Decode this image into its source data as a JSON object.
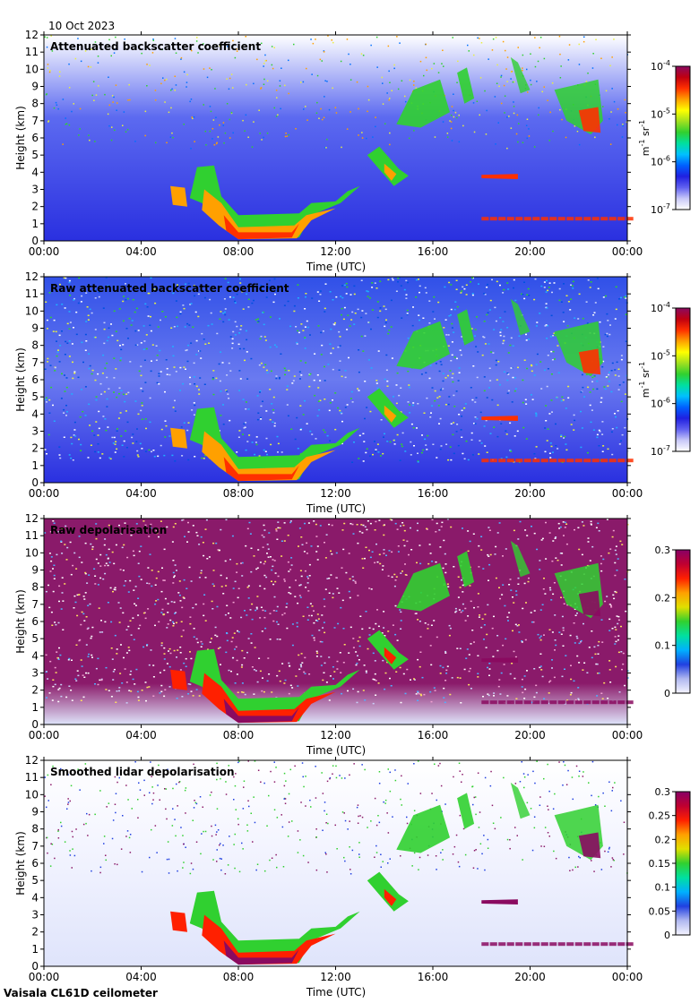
{
  "header": {
    "date": "10 Oct 2023",
    "footer": "Vaisala CL61D ceilometer"
  },
  "colors": {
    "rainbow": [
      "#ffffff",
      "#c8c8f8",
      "#6060f0",
      "#2020e0",
      "#0060ff",
      "#00c0ff",
      "#00e0a0",
      "#30d030",
      "#a0e020",
      "#ffff00",
      "#ffa000",
      "#ff3000",
      "#c00010",
      "#8a0a60"
    ],
    "depol": [
      "#f4f4ff",
      "#b0b8f0",
      "#2040e0",
      "#00b0ff",
      "#00e0a0",
      "#30d030",
      "#e0e000",
      "#ffa000",
      "#ff2000",
      "#c00030",
      "#880066"
    ],
    "background_noise": "#3048e8",
    "depol_noise": "#8a1a6a"
  },
  "chart_data": [
    {
      "type": "heatmap",
      "title": "Attenuated backscatter coefficient",
      "xlabel": "Time (UTC)",
      "ylabel": "Height (km)",
      "x_ticks": [
        "00:00",
        "04:00",
        "08:00",
        "12:00",
        "16:00",
        "20:00",
        "00:00"
      ],
      "xlim_hours": [
        0,
        24
      ],
      "ylim": [
        0,
        12
      ],
      "y_ticks": [
        "0",
        "1",
        "2",
        "3",
        "4",
        "5",
        "6",
        "7",
        "8",
        "9",
        "10",
        "11",
        "12"
      ],
      "scale": "log",
      "colorbar_ticks": [
        {
          "mant": "10",
          "exp": "-4"
        },
        {
          "mant": "10",
          "exp": "-5"
        },
        {
          "mant": "10",
          "exp": "-6"
        },
        {
          "mant": "10",
          "exp": "-7"
        }
      ],
      "colorbar_unit": {
        "a": "m",
        "ae": "-1",
        "b": "sr",
        "be": "-1"
      },
      "noise": "clean"
    },
    {
      "type": "heatmap",
      "title": "Raw attenuated backscatter coefficient",
      "xlabel": "Time (UTC)",
      "ylabel": "Height (km)",
      "x_ticks": [
        "00:00",
        "04:00",
        "08:00",
        "12:00",
        "16:00",
        "20:00",
        "00:00"
      ],
      "xlim_hours": [
        0,
        24
      ],
      "ylim": [
        0,
        12
      ],
      "y_ticks": [
        "0",
        "1",
        "2",
        "3",
        "4",
        "5",
        "6",
        "7",
        "8",
        "9",
        "10",
        "11",
        "12"
      ],
      "scale": "log",
      "colorbar_ticks": [
        {
          "mant": "10",
          "exp": "-4"
        },
        {
          "mant": "10",
          "exp": "-5"
        },
        {
          "mant": "10",
          "exp": "-6"
        },
        {
          "mant": "10",
          "exp": "-7"
        }
      ],
      "colorbar_unit": {
        "a": "m",
        "ae": "-1",
        "b": "sr",
        "be": "-1"
      },
      "noise": "raw"
    },
    {
      "type": "heatmap",
      "title": "Raw depolarisation",
      "xlabel": "Time (UTC)",
      "ylabel": "Height (km)",
      "x_ticks": [
        "00:00",
        "04:00",
        "08:00",
        "12:00",
        "16:00",
        "20:00",
        "00:00"
      ],
      "xlim_hours": [
        0,
        24
      ],
      "ylim": [
        0,
        12
      ],
      "y_ticks": [
        "0",
        "1",
        "2",
        "3",
        "4",
        "5",
        "6",
        "7",
        "8",
        "9",
        "10",
        "11",
        "12"
      ],
      "scale": "linear",
      "colorbar_ticks": [
        {
          "label": "0.3"
        },
        {
          "label": "0.2"
        },
        {
          "label": "0.1"
        },
        {
          "label": "0"
        }
      ],
      "noise": "depol-raw"
    },
    {
      "type": "heatmap",
      "title": "Smoothed lidar depolarisation",
      "xlabel": "Time (UTC)",
      "ylabel": "Height (km)",
      "x_ticks": [
        "00:00",
        "04:00",
        "08:00",
        "12:00",
        "16:00",
        "20:00",
        "00:00"
      ],
      "xlim_hours": [
        0,
        24
      ],
      "ylim": [
        0,
        12
      ],
      "y_ticks": [
        "0",
        "1",
        "2",
        "3",
        "4",
        "5",
        "6",
        "7",
        "8",
        "9",
        "10",
        "11",
        "12"
      ],
      "scale": "linear",
      "colorbar_ticks": [
        {
          "label": "0.3"
        },
        {
          "label": "0.25"
        },
        {
          "label": "0.2"
        },
        {
          "label": "0.15"
        },
        {
          "label": "0.1"
        },
        {
          "label": "0.05"
        },
        {
          "label": "0"
        }
      ],
      "noise": "depol-smooth"
    }
  ]
}
